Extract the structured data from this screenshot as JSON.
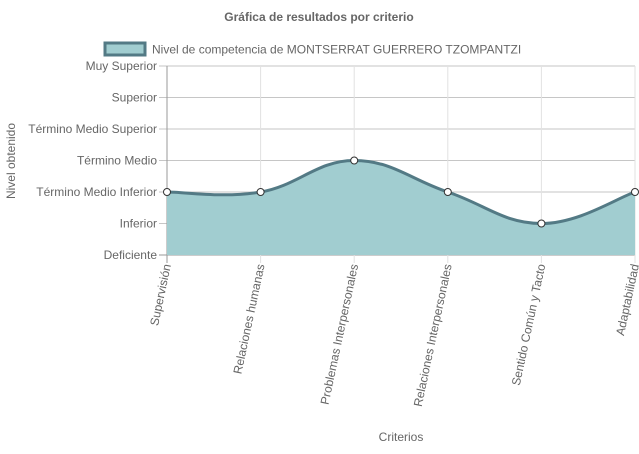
{
  "chart_data": {
    "type": "area",
    "title": "Gráfica de resultados por criterio",
    "xlabel": "Criterios",
    "ylabel": "Nivel obtenido",
    "y_levels": [
      "Deficiente",
      "Inferior",
      "Término Medio Inferior",
      "Término Medio",
      "Término Medio Superior",
      "Superior",
      "Muy Superior"
    ],
    "ylim": [
      0,
      6
    ],
    "categories": [
      "Supervisión",
      "Relaciones humanas",
      "Problemas Interpersonales",
      "Relaciones Interpersonales",
      "Sentido Común y Tacto",
      "Adaptabilidad"
    ],
    "series": [
      {
        "name": "Nivel de competencia de MONTSERRAT GUERRERO TZOMPANTZI",
        "values": [
          2,
          2,
          3,
          2,
          1,
          2
        ],
        "fill_color": "#a1cdd0",
        "line_color": "#537a85",
        "point_color": "#ffffff"
      }
    ],
    "grid": true,
    "legend": "top",
    "smooth": true
  }
}
